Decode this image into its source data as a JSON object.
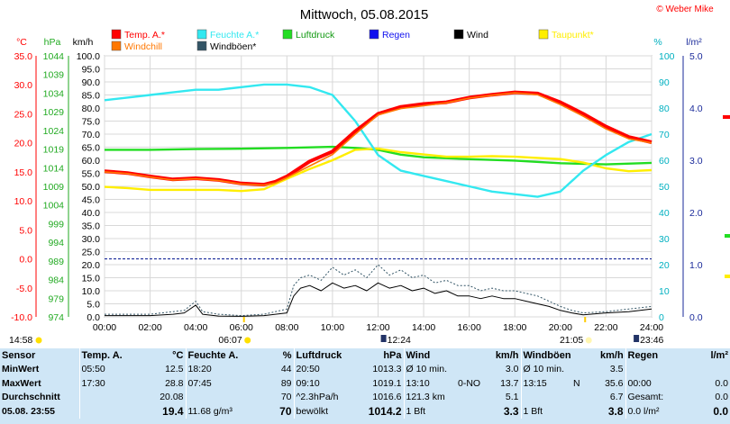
{
  "header": {
    "title": "Mittwoch, 05.08.2015",
    "brand": "© Weber Mike"
  },
  "chart_data": {
    "type": "line",
    "title": "Mittwoch, 05.08.2015",
    "x_ticks": [
      "00:00",
      "02:00",
      "04:00",
      "06:00",
      "08:00",
      "10:00",
      "12:00",
      "14:00",
      "16:00",
      "18:00",
      "20:00",
      "22:00",
      "24:00"
    ],
    "x_unit": "hours",
    "axes": {
      "temp": {
        "label": "°C",
        "ylim": [
          -10,
          35
        ],
        "ticks": [
          "35.0",
          "30.0",
          "25.0",
          "20.0",
          "15.0",
          "10.0",
          "5.0",
          "0.0",
          "-5.0",
          "-10.0"
        ],
        "color": "#ff0000"
      },
      "hpa": {
        "label": "hPa",
        "ylim": [
          974,
          1044
        ],
        "ticks": [
          "1044",
          "1039",
          "1034",
          "1029",
          "1024",
          "1019",
          "1014",
          "1009",
          "1004",
          "999",
          "994",
          "989",
          "984",
          "979",
          "974"
        ],
        "color": "#22aa22"
      },
      "kmh": {
        "label": "km/h",
        "ylim": [
          0,
          100
        ],
        "ticks": [
          "100.0",
          "95.0",
          "90.0",
          "85.0",
          "80.0",
          "75.0",
          "70.0",
          "65.0",
          "60.0",
          "55.0",
          "50.0",
          "45.0",
          "40.0",
          "35.0",
          "30.0",
          "25.0",
          "20.0",
          "15.0",
          "10.0",
          "5.0",
          "0.0"
        ],
        "color": "#000000"
      },
      "hum": {
        "label": "%",
        "ylim": [
          0,
          100
        ],
        "ticks": [
          "100",
          "90",
          "80",
          "70",
          "60",
          "50",
          "40",
          "30",
          "20",
          "10",
          "0"
        ],
        "color": "#00b0c0"
      },
      "rain": {
        "label": "l/m²",
        "ylim": [
          0,
          5
        ],
        "ticks": [
          "5.0",
          "4.0",
          "3.0",
          "2.0",
          "1.0",
          "0.0"
        ],
        "color": "#1a2a9a"
      }
    },
    "legend": [
      {
        "name": "Temp. A.*",
        "color": "#ff0000"
      },
      {
        "name": "Feuchte A.*",
        "color": "#33e8f0"
      },
      {
        "name": "Luftdruck",
        "color": "#22dd22"
      },
      {
        "name": "Regen",
        "color": "#1010ee"
      },
      {
        "name": "Wind",
        "color": "#000000"
      },
      {
        "name": "Taupunkt*",
        "color": "#ffee00"
      },
      {
        "name": "Windchill",
        "color": "#ff7700"
      },
      {
        "name": "Windböen*",
        "color": "#335566"
      }
    ],
    "series": [
      {
        "name": "Temp. A.*",
        "axis": "temp",
        "color": "#ff0000",
        "points": [
          [
            0,
            15.1
          ],
          [
            1,
            14.8
          ],
          [
            2,
            14.2
          ],
          [
            3,
            13.7
          ],
          [
            4,
            13.9
          ],
          [
            5,
            13.6
          ],
          [
            6,
            13.0
          ],
          [
            7,
            12.8
          ],
          [
            7.5,
            13.3
          ],
          [
            8,
            14.2
          ],
          [
            9,
            16.8
          ],
          [
            10,
            18.5
          ],
          [
            11,
            22.0
          ],
          [
            12,
            25.0
          ],
          [
            13,
            26.2
          ],
          [
            14,
            26.7
          ],
          [
            15,
            27.0
          ],
          [
            16,
            27.8
          ],
          [
            17,
            28.3
          ],
          [
            18,
            28.7
          ],
          [
            19,
            28.5
          ],
          [
            20,
            27.0
          ],
          [
            21,
            25.0
          ],
          [
            22,
            22.8
          ],
          [
            23,
            21.0
          ],
          [
            24,
            20.1
          ]
        ]
      },
      {
        "name": "Windchill",
        "axis": "temp",
        "color": "#ff7700",
        "points": [
          [
            0,
            15.0
          ],
          [
            1,
            14.7
          ],
          [
            2,
            14.1
          ],
          [
            3,
            13.6
          ],
          [
            4,
            13.8
          ],
          [
            5,
            13.5
          ],
          [
            6,
            12.9
          ],
          [
            7,
            12.7
          ],
          [
            7.5,
            13.1
          ],
          [
            8,
            14.0
          ],
          [
            9,
            16.0
          ],
          [
            10,
            18.0
          ],
          [
            11,
            21.5
          ],
          [
            12,
            24.8
          ],
          [
            13,
            25.9
          ],
          [
            14,
            26.4
          ],
          [
            15,
            26.9
          ],
          [
            16,
            27.7
          ],
          [
            17,
            28.2
          ],
          [
            18,
            28.6
          ],
          [
            19,
            28.3
          ],
          [
            20,
            26.6
          ],
          [
            21,
            24.6
          ],
          [
            22,
            22.4
          ],
          [
            23,
            20.7
          ],
          [
            24,
            20.0
          ]
        ]
      },
      {
        "name": "Taupunkt*",
        "axis": "temp",
        "color": "#ffee00",
        "points": [
          [
            0,
            12.4
          ],
          [
            1,
            12.2
          ],
          [
            2,
            11.9
          ],
          [
            3,
            11.9
          ],
          [
            4,
            11.9
          ],
          [
            5,
            11.9
          ],
          [
            6,
            11.7
          ],
          [
            7,
            12.0
          ],
          [
            8,
            13.8
          ],
          [
            9,
            15.5
          ],
          [
            10,
            17.0
          ],
          [
            11,
            18.8
          ],
          [
            12,
            19.0
          ],
          [
            13,
            18.4
          ],
          [
            14,
            18.0
          ],
          [
            15,
            17.6
          ],
          [
            16,
            17.6
          ],
          [
            17,
            17.7
          ],
          [
            18,
            17.6
          ],
          [
            19,
            17.4
          ],
          [
            20,
            17.2
          ],
          [
            21,
            16.6
          ],
          [
            22,
            15.6
          ],
          [
            23,
            15.1
          ],
          [
            24,
            15.3
          ]
        ]
      },
      {
        "name": "Feuchte A.*",
        "axis": "hum",
        "color": "#33e8f0",
        "points": [
          [
            0,
            83
          ],
          [
            1,
            84
          ],
          [
            2,
            85
          ],
          [
            3,
            86
          ],
          [
            4,
            87
          ],
          [
            5,
            87
          ],
          [
            6,
            88
          ],
          [
            7,
            89
          ],
          [
            8,
            89
          ],
          [
            9,
            88
          ],
          [
            10,
            85
          ],
          [
            11,
            75
          ],
          [
            12,
            62
          ],
          [
            13,
            56
          ],
          [
            14,
            54
          ],
          [
            15,
            52
          ],
          [
            16,
            50
          ],
          [
            17,
            48
          ],
          [
            18,
            47
          ],
          [
            19,
            46
          ],
          [
            20,
            48
          ],
          [
            21,
            56
          ],
          [
            22,
            62
          ],
          [
            23,
            67
          ],
          [
            24,
            70
          ]
        ]
      },
      {
        "name": "Luftdruck",
        "axis": "hpa",
        "color": "#22dd22",
        "points": [
          [
            0,
            1018.8
          ],
          [
            2,
            1018.8
          ],
          [
            4,
            1019.0
          ],
          [
            6,
            1019.1
          ],
          [
            8,
            1019.3
          ],
          [
            10,
            1019.6
          ],
          [
            11,
            1019.3
          ],
          [
            12,
            1018.8
          ],
          [
            13,
            1017.5
          ],
          [
            14,
            1016.8
          ],
          [
            16,
            1016.3
          ],
          [
            18,
            1015.9
          ],
          [
            20,
            1015.2
          ],
          [
            22,
            1014.9
          ],
          [
            24,
            1015.3
          ]
        ]
      },
      {
        "name": "Wind",
        "axis": "kmh",
        "color": "#000000",
        "points": [
          [
            0,
            0.5
          ],
          [
            2,
            0.5
          ],
          [
            3,
            1
          ],
          [
            3.5,
            1.5
          ],
          [
            4,
            4.5
          ],
          [
            4.3,
            1
          ],
          [
            5,
            0.3
          ],
          [
            6,
            0.2
          ],
          [
            7,
            0.5
          ],
          [
            8,
            1.5
          ],
          [
            8.3,
            8
          ],
          [
            8.6,
            11
          ],
          [
            9,
            12
          ],
          [
            9.5,
            10
          ],
          [
            10,
            13
          ],
          [
            10.5,
            11
          ],
          [
            11,
            12
          ],
          [
            11.5,
            10
          ],
          [
            12,
            13
          ],
          [
            12.5,
            11
          ],
          [
            13,
            12
          ],
          [
            13.5,
            10
          ],
          [
            14,
            11
          ],
          [
            14.5,
            9
          ],
          [
            15,
            10
          ],
          [
            15.5,
            8
          ],
          [
            16,
            8
          ],
          [
            16.5,
            7
          ],
          [
            17,
            8
          ],
          [
            17.5,
            7
          ],
          [
            18,
            7
          ],
          [
            18.5,
            6
          ],
          [
            19,
            5
          ],
          [
            19.5,
            4
          ],
          [
            20,
            2.5
          ],
          [
            20.5,
            1.5
          ],
          [
            21,
            0.8
          ],
          [
            22,
            1.5
          ],
          [
            23,
            2
          ],
          [
            24,
            3
          ]
        ]
      },
      {
        "name": "Windböen*",
        "axis": "kmh",
        "color": "#335566",
        "dashed": true,
        "points": [
          [
            0,
            1
          ],
          [
            2,
            1
          ],
          [
            3,
            2
          ],
          [
            3.5,
            2.5
          ],
          [
            4,
            6
          ],
          [
            4.3,
            2
          ],
          [
            5,
            1
          ],
          [
            6,
            0.5
          ],
          [
            7,
            1
          ],
          [
            8,
            3
          ],
          [
            8.3,
            12
          ],
          [
            8.6,
            15
          ],
          [
            9,
            16
          ],
          [
            9.5,
            14
          ],
          [
            10,
            19
          ],
          [
            10.5,
            16
          ],
          [
            11,
            18
          ],
          [
            11.5,
            15
          ],
          [
            12,
            20
          ],
          [
            12.5,
            16
          ],
          [
            13,
            18
          ],
          [
            13.5,
            15
          ],
          [
            14,
            16
          ],
          [
            14.5,
            13
          ],
          [
            15,
            14
          ],
          [
            15.5,
            12
          ],
          [
            16,
            12
          ],
          [
            16.5,
            10
          ],
          [
            17,
            11
          ],
          [
            17.5,
            10
          ],
          [
            18,
            10
          ],
          [
            18.5,
            9
          ],
          [
            19,
            8
          ],
          [
            19.5,
            6
          ],
          [
            20,
            4
          ],
          [
            20.5,
            2.5
          ],
          [
            21,
            1.5
          ],
          [
            22,
            2
          ],
          [
            23,
            3
          ],
          [
            24,
            4
          ]
        ]
      }
    ],
    "reference_lines": [
      {
        "axis": "temp",
        "value": 0.0,
        "color": "#1a2a9a",
        "style": "dashed"
      }
    ],
    "events": {
      "sunrise": "06:07",
      "sunset": "21:05",
      "moon": "12:24",
      "moon2": "23:46",
      "left_time": "14:58"
    }
  },
  "stats": {
    "headers": {
      "sensor": "Sensor",
      "temp": "Temp. A.",
      "temp_unit": "°C",
      "hum": "Feuchte A.",
      "hum_unit": "%",
      "press": "Luftdruck",
      "press_unit": "hPa",
      "wind": "Wind",
      "wind_unit": "km/h",
      "gust": "Windböen",
      "gust_unit": "km/h",
      "rain": "Regen",
      "rain_unit": "l/m²"
    },
    "rows": [
      {
        "label": "MinWert",
        "temp_time": "05:50",
        "temp_val": "12.5",
        "hum_time": "18:20",
        "hum_val": "44",
        "press_time": "20:50",
        "press_val": "1013.3",
        "wind_a": "Ø 10 min.",
        "wind_b": "",
        "wind_val": "3.0",
        "gust_a": "Ø 10 min.",
        "gust_b": "",
        "gust_val": "3.5",
        "rain_a": "",
        "rain_val": ""
      },
      {
        "label": "MaxWert",
        "temp_time": "17:30",
        "temp_val": "28.8",
        "hum_time": "07:45",
        "hum_val": "89",
        "press_time": "09:10",
        "press_val": "1019.1",
        "wind_a": "13:10",
        "wind_b": "0-NO",
        "wind_val": "13.7",
        "gust_a": "13:15",
        "gust_b": "N",
        "gust_val": "35.6",
        "rain_a": "00:00",
        "rain_val": "0.0"
      },
      {
        "label": "Durchschnitt",
        "temp_time": "",
        "temp_val": "20.08",
        "hum_time": "",
        "hum_val": "70",
        "press_time": "^2.3hPa/h",
        "press_val": "1016.6",
        "wind_a": "121.3 km",
        "wind_b": "",
        "wind_val": "5.1",
        "gust_a": "",
        "gust_b": "",
        "gust_val": "6.7",
        "rain_a": "Gesamt:",
        "rain_val": "0.0"
      },
      {
        "label": "05.08. 23:55",
        "temp_time": "",
        "temp_val": "19.4",
        "hum_time": "11.68 g/m³",
        "hum_val": "70",
        "press_time": "bewölkt",
        "press_val": "1014.2",
        "wind_a": "1 Bft",
        "wind_b": "",
        "wind_val": "3.3",
        "gust_a": "1 Bft",
        "gust_b": "",
        "gust_val": "3.8",
        "rain_a": "0.0 l/m²",
        "rain_val": "0.0"
      }
    ]
  }
}
